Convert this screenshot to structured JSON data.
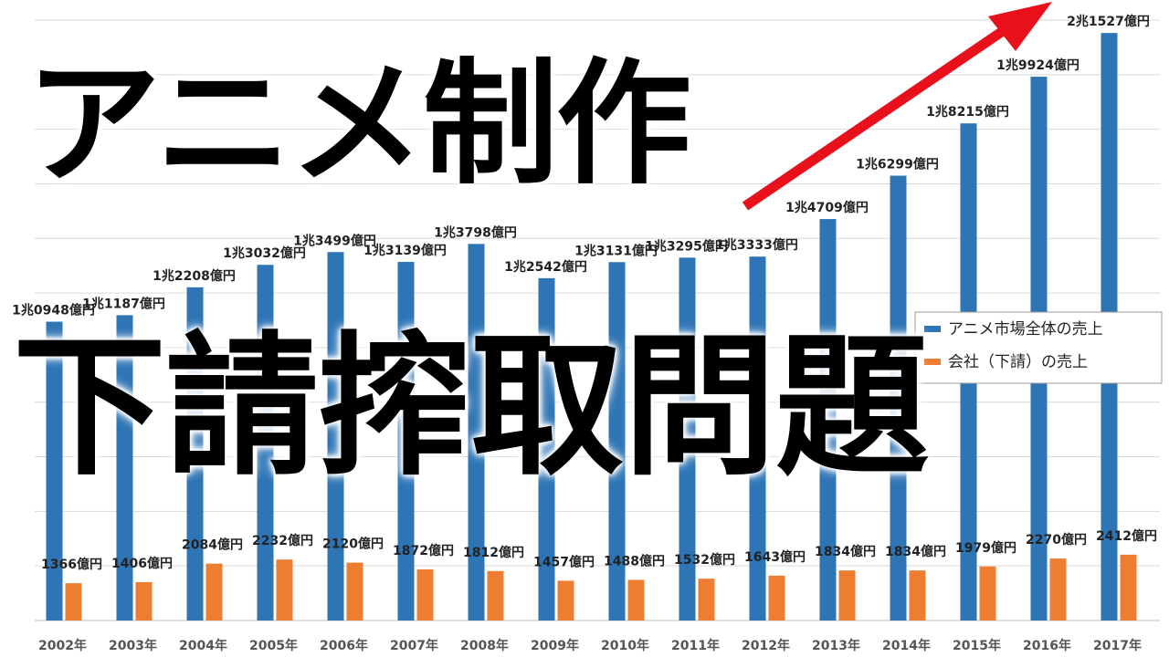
{
  "headline": {
    "line1": "アニメ制作",
    "line2": "下請搾取問題"
  },
  "colors": {
    "market": "#2e75b6",
    "subcontract": "#ed7d31",
    "arrow": "#e8101a",
    "grid": "#d9d9d9"
  },
  "chart_data": {
    "type": "bar",
    "categories": [
      "2002年",
      "2003年",
      "2004年",
      "2005年",
      "2006年",
      "2007年",
      "2008年",
      "2009年",
      "2010年",
      "2011年",
      "2012年",
      "2013年",
      "2014年",
      "2015年",
      "2016年",
      "2017年"
    ],
    "ylim": [
      0,
      22000
    ],
    "grid": true,
    "legend_position": "right",
    "series": [
      {
        "name": "アニメ市場全体の売上",
        "color": "#2e75b6",
        "values": [
          10948,
          11187,
          12208,
          13032,
          13499,
          13139,
          13798,
          12542,
          13131,
          13295,
          13333,
          14709,
          16299,
          18215,
          19924,
          21527
        ],
        "labels": [
          "1兆0948億円",
          "1兆1187億円",
          "1兆2208億円",
          "1兆3032億円",
          "1兆3499億円",
          "1兆3139億円",
          "1兆3798億円",
          "1兆2542億円",
          "1兆3131億円",
          "1兆3295億円",
          "1兆3333億円",
          "1兆4709億円",
          "1兆6299億円",
          "1兆8215億円",
          "1兆9924億円",
          "2兆1527億円"
        ]
      },
      {
        "name": "会社（下請）の売上",
        "color": "#ed7d31",
        "values": [
          1366,
          1406,
          2084,
          2232,
          2120,
          1872,
          1812,
          1457,
          1488,
          1532,
          1643,
          1834,
          1834,
          1979,
          2270,
          2412
        ],
        "labels": [
          "1366億円",
          "1406億円",
          "2084億円",
          "2232億円",
          "2120億円",
          "1872億円",
          "1812億円",
          "1457億円",
          "1488億円",
          "1532億円",
          "1643億円",
          "1834億円",
          "1834億円",
          "1979億円",
          "2270億円",
          "2412億円"
        ]
      }
    ]
  }
}
